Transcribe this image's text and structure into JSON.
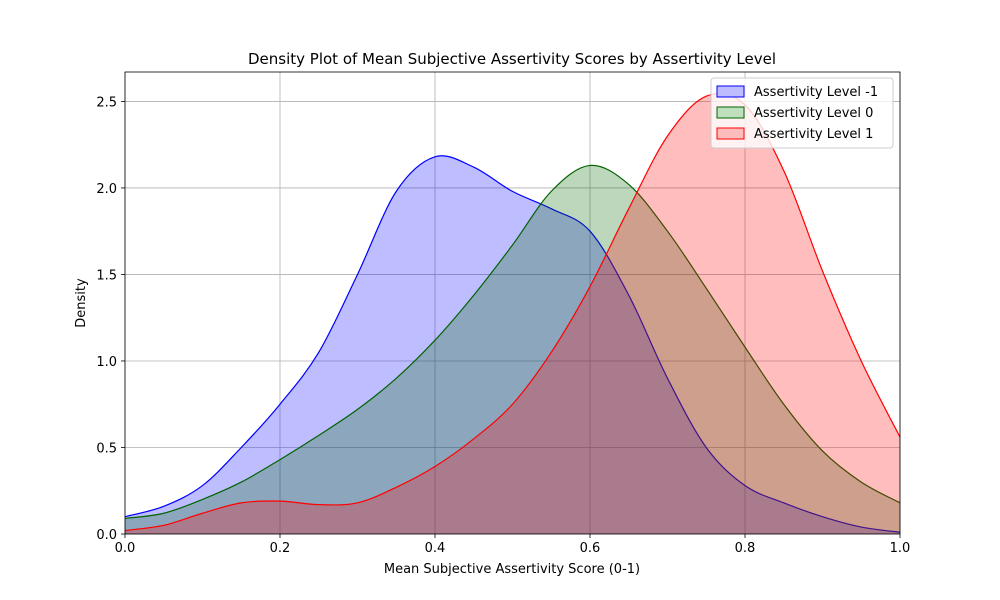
{
  "chart_data": {
    "type": "area",
    "title": "Density Plot of Mean Subjective Assertivity Scores by Assertivity Level",
    "xlabel": "Mean Subjective Assertivity Score (0-1)",
    "ylabel": "Density",
    "xlim": [
      0.0,
      1.0
    ],
    "ylim": [
      0.0,
      2.67
    ],
    "xticks": [
      "0.0",
      "0.2",
      "0.4",
      "0.6",
      "0.8",
      "1.0"
    ],
    "yticks": [
      "0.0",
      "0.5",
      "1.0",
      "1.5",
      "2.0",
      "2.5"
    ],
    "grid": true,
    "legend_position": "top-right",
    "x": [
      0.0,
      0.05,
      0.1,
      0.15,
      0.2,
      0.25,
      0.3,
      0.35,
      0.4,
      0.45,
      0.5,
      0.55,
      0.6,
      0.65,
      0.7,
      0.75,
      0.8,
      0.85,
      0.9,
      0.95,
      1.0
    ],
    "series": [
      {
        "name": "Assertivity Level -1",
        "line_color": "#0000ff",
        "fill_color": "#bcbcff",
        "values": [
          0.1,
          0.16,
          0.28,
          0.5,
          0.75,
          1.05,
          1.5,
          1.98,
          2.18,
          2.12,
          1.98,
          1.88,
          1.75,
          1.38,
          0.9,
          0.5,
          0.28,
          0.18,
          0.1,
          0.04,
          0.01
        ]
      },
      {
        "name": "Assertivity Level 0",
        "line_color": "#006400",
        "fill_color": "#bfe0bf",
        "values": [
          0.09,
          0.12,
          0.2,
          0.3,
          0.43,
          0.57,
          0.72,
          0.9,
          1.12,
          1.38,
          1.67,
          1.98,
          2.13,
          2.02,
          1.75,
          1.42,
          1.08,
          0.75,
          0.48,
          0.3,
          0.18
        ]
      },
      {
        "name": "Assertivity Level 1",
        "line_color": "#ff0000",
        "fill_color": "#ffbcbc",
        "values": [
          0.02,
          0.05,
          0.12,
          0.18,
          0.19,
          0.17,
          0.18,
          0.27,
          0.39,
          0.55,
          0.75,
          1.05,
          1.43,
          1.88,
          2.3,
          2.53,
          2.48,
          2.1,
          1.52,
          1.0,
          0.56
        ]
      }
    ]
  }
}
